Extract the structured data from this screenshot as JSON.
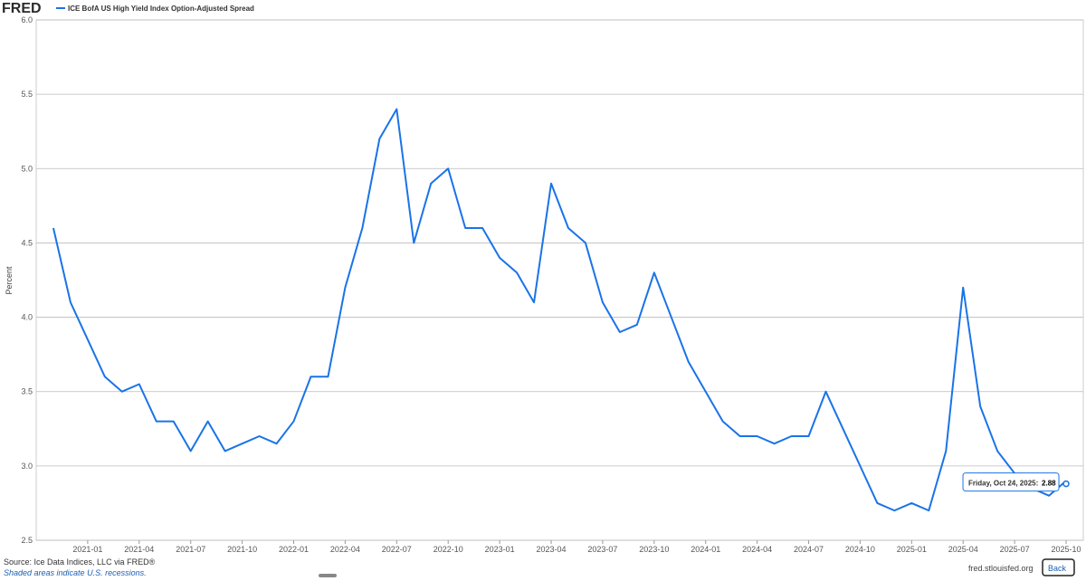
{
  "brand": "FRED",
  "chart_data": {
    "type": "line",
    "y_label": "Percent",
    "series": [
      {
        "name": "ICE BofA US High Yield Index Option-Adjusted Spread",
        "color": "#1a73e8",
        "values": [
          4.6,
          4.1,
          3.85,
          3.6,
          3.5,
          3.55,
          3.3,
          3.3,
          3.1,
          3.3,
          3.1,
          3.15,
          3.2,
          3.15,
          3.3,
          3.6,
          3.6,
          4.2,
          4.6,
          5.2,
          5.4,
          4.5,
          4.9,
          5.0,
          4.6,
          4.6,
          4.4,
          4.3,
          4.1,
          4.9,
          4.6,
          4.5,
          4.1,
          3.9,
          3.95,
          4.3,
          4.0,
          3.7,
          3.5,
          3.3,
          3.2,
          3.2,
          3.15,
          3.2,
          3.2,
          3.5,
          3.25,
          3.0,
          2.75,
          2.7,
          2.75,
          2.7,
          3.1,
          4.2,
          3.4,
          3.1,
          2.95,
          2.85,
          2.8,
          2.9
        ]
      }
    ],
    "x": [
      "2020-11",
      "2020-12",
      "2021-01",
      "2021-02",
      "2021-03",
      "2021-04",
      "2021-05",
      "2021-06",
      "2021-07",
      "2021-08",
      "2021-09",
      "2021-10",
      "2021-11",
      "2021-12",
      "2022-01",
      "2022-02",
      "2022-03",
      "2022-04",
      "2022-05",
      "2022-06",
      "2022-07",
      "2022-08",
      "2022-09",
      "2022-10",
      "2022-11",
      "2022-12",
      "2023-01",
      "2023-02",
      "2023-03",
      "2023-04",
      "2023-05",
      "2023-06",
      "2023-07",
      "2023-08",
      "2023-09",
      "2023-10",
      "2023-11",
      "2023-12",
      "2024-01",
      "2024-02",
      "2024-03",
      "2024-04",
      "2024-05",
      "2024-06",
      "2024-07",
      "2024-08",
      "2024-09",
      "2024-10",
      "2024-11",
      "2024-12",
      "2025-01",
      "2025-02",
      "2025-03",
      "2025-04",
      "2025-05",
      "2025-06",
      "2025-07",
      "2025-08",
      "2025-09",
      "2025-10"
    ],
    "xlim": [
      "2020-10",
      "2025-11"
    ],
    "xticks": [
      "2021-01",
      "2021-04",
      "2021-07",
      "2021-10",
      "2022-01",
      "2022-04",
      "2022-07",
      "2022-10",
      "2023-01",
      "2023-04",
      "2023-07",
      "2023-10",
      "2024-01",
      "2024-04",
      "2024-07",
      "2024-10",
      "2025-01",
      "2025-04",
      "2025-07",
      "2025-10"
    ],
    "ylim": [
      2.5,
      6.0
    ],
    "yticks": [
      2.5,
      {
        "value": 3,
        "label": "3.0"
      },
      3.5,
      {
        "value": 4,
        "label": "4.0"
      },
      4.5,
      {
        "value": 5,
        "label": "5.0"
      },
      5.5,
      {
        "value": 6,
        "label": "6.0"
      }
    ],
    "grid": true,
    "tooltip": {
      "label": "Friday, Oct 24, 2025:",
      "value": 2.88
    }
  },
  "footer": {
    "source": "Source: Ice Data Indices, LLC via FRED®",
    "note": "Shaded areas indicate U.S. recessions.",
    "site": "fred.stlouisfed.org",
    "back": "Back"
  }
}
